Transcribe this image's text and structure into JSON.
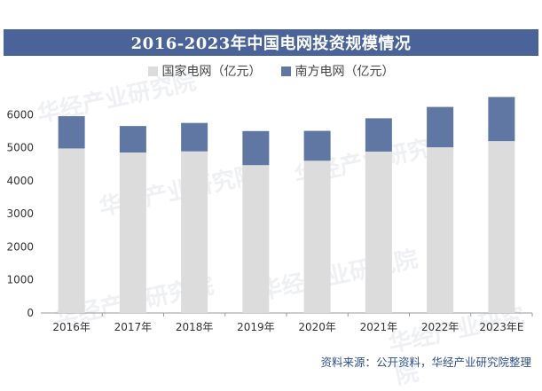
{
  "header": {
    "title": "2016-2023年中国电网投资规模情况"
  },
  "footer": {
    "source": "资料来源：公开资料，华经产业研究院整理"
  },
  "watermark": {
    "text": "华经产业研究院"
  },
  "colors": {
    "title_bg": "#4a6499",
    "series_state_grid": "#dcdcdc",
    "series_southern_grid": "#6077a3",
    "axis_text": "#333333"
  },
  "chart_data": {
    "type": "bar",
    "stacked": true,
    "categories": [
      "2016年",
      "2017年",
      "2018年",
      "2019年",
      "2020年",
      "2021年",
      "2022年",
      "2023年E"
    ],
    "series": [
      {
        "name": "国家电网（亿元）",
        "color": "#dcdcdc",
        "values": [
          4977,
          4854,
          4889,
          4473,
          4605,
          4882,
          5012,
          5200
        ]
      },
      {
        "name": "南方电网（亿元）",
        "color": "#6077a3",
        "values": [
          976,
          801,
          859,
          1030,
          904,
          1008,
          1221,
          1334
        ]
      }
    ],
    "yticks": [
      0,
      1000,
      2000,
      3000,
      4000,
      5000,
      6000
    ],
    "ylim": [
      0,
      7000
    ],
    "legend_position": "top-center",
    "grid": false,
    "xlabel": "",
    "ylabel": ""
  }
}
